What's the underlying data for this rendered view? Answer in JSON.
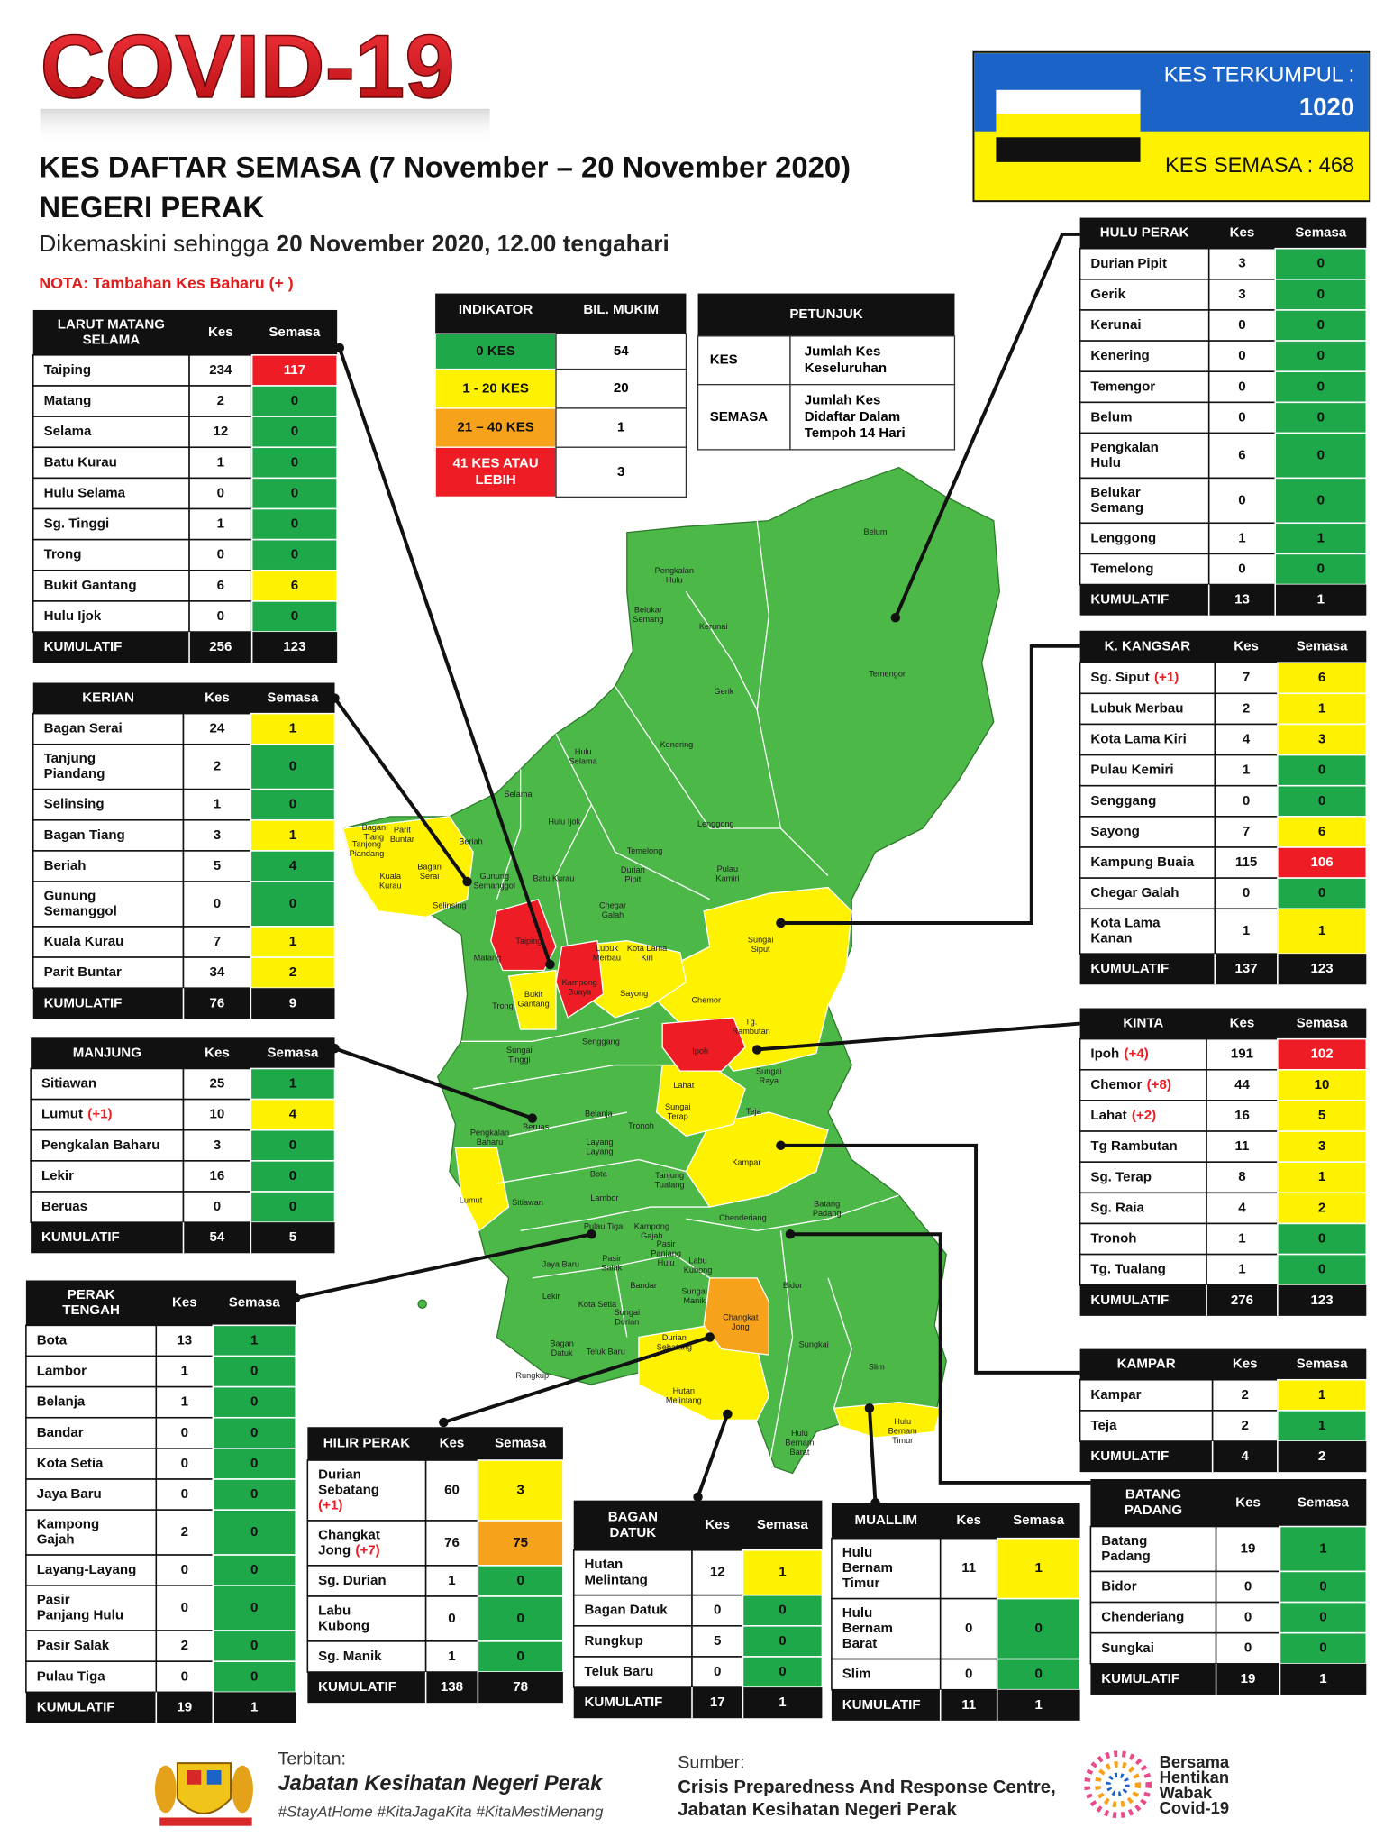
{
  "header": {
    "title": "COVID-19",
    "subtitle": "KES DAFTAR SEMASA (7 November – 20 November 2020)",
    "state": "NEGERI PERAK",
    "updated_prefix": "Dikemaskini sehingga",
    "updated_date": "20 November 2020, 12.00 tengahari",
    "note": "NOTA: Tambahan Kes Baharu (+   )"
  },
  "summary": {
    "cumulative_label": "KES TERKUMPUL :",
    "cumulative": 1020,
    "active_label": "KES SEMASA :",
    "active": 468
  },
  "indicator": {
    "headers": [
      "INDIKATOR",
      "BIL. MUKIM"
    ],
    "rows": [
      {
        "label": "0 KES",
        "count": 54,
        "color": "#1fa84a"
      },
      {
        "label": "1 - 20 KES",
        "count": 20,
        "color": "#fff200"
      },
      {
        "label": "21 – 40 KES",
        "count": 1,
        "color": "#f7a21b"
      },
      {
        "label": "41 KES ATAU LEBIH",
        "count": 3,
        "color": "#ee1c24"
      }
    ]
  },
  "legend": {
    "title": "PETUNJUK",
    "rows": [
      {
        "term": "KES",
        "desc": "Jumlah Kes Keseluruhan"
      },
      {
        "term": "SEMASA",
        "desc": "Jumlah Kes Didaftar Dalam Tempoh 14 Hari"
      }
    ]
  },
  "tables": [
    {
      "title": "LARUT MATANG SELAMA",
      "headers": [
        "Kes",
        "Semasa"
      ],
      "rows": [
        {
          "name": "Taiping",
          "kes": 234,
          "semasa": 117,
          "color": "#ee1c24"
        },
        {
          "name": "Matang",
          "kes": 2,
          "semasa": 0,
          "color": "#1fa84a"
        },
        {
          "name": "Selama",
          "kes": 12,
          "semasa": 0,
          "color": "#1fa84a"
        },
        {
          "name": "Batu Kurau",
          "kes": 1,
          "semasa": 0,
          "color": "#1fa84a"
        },
        {
          "name": "Hulu Selama",
          "kes": 0,
          "semasa": 0,
          "color": "#1fa84a"
        },
        {
          "name": "Sg. Tinggi",
          "kes": 1,
          "semasa": 0,
          "color": "#1fa84a"
        },
        {
          "name": "Trong",
          "kes": 0,
          "semasa": 0,
          "color": "#1fa84a"
        },
        {
          "name": "Bukit Gantang",
          "kes": 6,
          "semasa": 6,
          "color": "#fff200"
        },
        {
          "name": "Hulu Ijok",
          "kes": 0,
          "semasa": 0,
          "color": "#1fa84a"
        }
      ],
      "total": {
        "label": "KUMULATIF",
        "kes": 256,
        "semasa": 123
      }
    },
    {
      "title": "KERIAN",
      "headers": [
        "Kes",
        "Semasa"
      ],
      "rows": [
        {
          "name": "Bagan Serai",
          "kes": 24,
          "semasa": 1,
          "color": "#fff200"
        },
        {
          "name": "Tanjung Piandang",
          "kes": 2,
          "semasa": 0,
          "color": "#1fa84a"
        },
        {
          "name": "Selinsing",
          "kes": 1,
          "semasa": 0,
          "color": "#1fa84a"
        },
        {
          "name": "Bagan Tiang",
          "kes": 3,
          "semasa": 1,
          "color": "#fff200"
        },
        {
          "name": "Beriah",
          "kes": 5,
          "semasa": 4,
          "color": "#1fa84a"
        },
        {
          "name": "Gunung Semanggol",
          "kes": 0,
          "semasa": 0,
          "color": "#1fa84a"
        },
        {
          "name": "Kuala Kurau",
          "kes": 7,
          "semasa": 1,
          "color": "#fff200"
        },
        {
          "name": "Parit Buntar",
          "kes": 34,
          "semasa": 2,
          "color": "#fff200"
        }
      ],
      "total": {
        "label": "KUMULATIF",
        "kes": 76,
        "semasa": 9
      }
    },
    {
      "title": "MANJUNG",
      "headers": [
        "Kes",
        "Semasa"
      ],
      "rows": [
        {
          "name": "Sitiawan",
          "kes": 25,
          "semasa": 1,
          "color": "#1fa84a"
        },
        {
          "name": "Lumut",
          "new": "(+1)",
          "kes": 10,
          "semasa": 4,
          "color": "#fff200"
        },
        {
          "name": "Pengkalan Baharu",
          "kes": 3,
          "semasa": 0,
          "color": "#1fa84a"
        },
        {
          "name": "Lekir",
          "kes": 16,
          "semasa": 0,
          "color": "#1fa84a"
        },
        {
          "name": "Beruas",
          "kes": 0,
          "semasa": 0,
          "color": "#1fa84a"
        }
      ],
      "total": {
        "label": "KUMULATIF",
        "kes": 54,
        "semasa": 5
      }
    },
    {
      "title": "PERAK TENGAH",
      "headers": [
        "Kes",
        "Semasa"
      ],
      "rows": [
        {
          "name": "Bota",
          "kes": 13,
          "semasa": 1,
          "color": "#1fa84a"
        },
        {
          "name": "Lambor",
          "kes": 1,
          "semasa": 0,
          "color": "#1fa84a"
        },
        {
          "name": "Belanja",
          "kes": 1,
          "semasa": 0,
          "color": "#1fa84a"
        },
        {
          "name": "Bandar",
          "kes": 0,
          "semasa": 0,
          "color": "#1fa84a"
        },
        {
          "name": "Kota Setia",
          "kes": 0,
          "semasa": 0,
          "color": "#1fa84a"
        },
        {
          "name": "Jaya Baru",
          "kes": 0,
          "semasa": 0,
          "color": "#1fa84a"
        },
        {
          "name": "Kampong Gajah",
          "kes": 2,
          "semasa": 0,
          "color": "#1fa84a"
        },
        {
          "name": "Layang-Layang",
          "kes": 0,
          "semasa": 0,
          "color": "#1fa84a"
        },
        {
          "name": "Pasir Panjang Hulu",
          "kes": 0,
          "semasa": 0,
          "color": "#1fa84a"
        },
        {
          "name": "Pasir Salak",
          "kes": 2,
          "semasa": 0,
          "color": "#1fa84a"
        },
        {
          "name": "Pulau Tiga",
          "kes": 0,
          "semasa": 0,
          "color": "#1fa84a"
        }
      ],
      "total": {
        "label": "KUMULATIF",
        "kes": 19,
        "semasa": 1
      }
    },
    {
      "title": "HILIR PERAK",
      "headers": [
        "Kes",
        "Semasa"
      ],
      "rows": [
        {
          "name": "Durian Sebatang",
          "new": "(+1)",
          "kes": 60,
          "semasa": 3,
          "color": "#fff200"
        },
        {
          "name": "Changkat Jong",
          "new": "(+7)",
          "kes": 76,
          "semasa": 75,
          "color": "#f7a21b"
        },
        {
          "name": "Sg. Durian",
          "kes": 1,
          "semasa": 0,
          "color": "#1fa84a"
        },
        {
          "name": "Labu Kubong",
          "kes": 0,
          "semasa": 0,
          "color": "#1fa84a"
        },
        {
          "name": "Sg. Manik",
          "kes": 1,
          "semasa": 0,
          "color": "#1fa84a"
        }
      ],
      "total": {
        "label": "KUMULATIF",
        "kes": 138,
        "semasa": 78
      }
    },
    {
      "title": "BAGAN DATUK",
      "headers": [
        "Kes",
        "Semasa"
      ],
      "rows": [
        {
          "name": "Hutan Melintang",
          "kes": 12,
          "semasa": 1,
          "color": "#fff200"
        },
        {
          "name": "Bagan Datuk",
          "kes": 0,
          "semasa": 0,
          "color": "#1fa84a"
        },
        {
          "name": "Rungkup",
          "kes": 5,
          "semasa": 0,
          "color": "#1fa84a"
        },
        {
          "name": "Teluk Baru",
          "kes": 0,
          "semasa": 0,
          "color": "#1fa84a"
        }
      ],
      "total": {
        "label": "KUMULATIF",
        "kes": 17,
        "semasa": 1
      }
    },
    {
      "title": "MUALLIM",
      "headers": [
        "Kes",
        "Semasa"
      ],
      "rows": [
        {
          "name": "Hulu Bernam Timur",
          "kes": 11,
          "semasa": 1,
          "color": "#fff200"
        },
        {
          "name": "Hulu Bernam Barat",
          "kes": 0,
          "semasa": 0,
          "color": "#1fa84a"
        },
        {
          "name": "Slim",
          "kes": 0,
          "semasa": 0,
          "color": "#1fa84a"
        }
      ],
      "total": {
        "label": "KUMULATIF",
        "kes": 11,
        "semasa": 1
      }
    },
    {
      "title": "BATANG PADANG",
      "headers": [
        "Kes",
        "Semasa"
      ],
      "rows": [
        {
          "name": "Batang Padang",
          "kes": 19,
          "semasa": 1,
          "color": "#1fa84a"
        },
        {
          "name": "Bidor",
          "kes": 0,
          "semasa": 0,
          "color": "#1fa84a"
        },
        {
          "name": "Chenderiang",
          "kes": 0,
          "semasa": 0,
          "color": "#1fa84a"
        },
        {
          "name": "Sungkai",
          "kes": 0,
          "semasa": 0,
          "color": "#1fa84a"
        }
      ],
      "total": {
        "label": "KUMULATIF",
        "kes": 19,
        "semasa": 1
      }
    },
    {
      "title": "KAMPAR",
      "headers": [
        "Kes",
        "Semasa"
      ],
      "rows": [
        {
          "name": "Kampar",
          "kes": 2,
          "semasa": 1,
          "color": "#fff200"
        },
        {
          "name": "Teja",
          "kes": 2,
          "semasa": 1,
          "color": "#1fa84a"
        }
      ],
      "total": {
        "label": "KUMULATIF",
        "kes": 4,
        "semasa": 2
      }
    },
    {
      "title": "KINTA",
      "headers": [
        "Kes",
        "Semasa"
      ],
      "rows": [
        {
          "name": "Ipoh",
          "new": "(+4)",
          "kes": 191,
          "semasa": 102,
          "color": "#ee1c24"
        },
        {
          "name": "Chemor",
          "new": "(+8)",
          "kes": 44,
          "semasa": 10,
          "color": "#fff200"
        },
        {
          "name": "Lahat",
          "new": "(+2)",
          "kes": 16,
          "semasa": 5,
          "color": "#fff200"
        },
        {
          "name": "Tg Rambutan",
          "kes": 11,
          "semasa": 3,
          "color": "#fff200"
        },
        {
          "name": "Sg. Terap",
          "kes": 8,
          "semasa": 1,
          "color": "#fff200"
        },
        {
          "name": "Sg. Raia",
          "kes": 4,
          "semasa": 2,
          "color": "#fff200"
        },
        {
          "name": "Tronoh",
          "kes": 1,
          "semasa": 0,
          "color": "#1fa84a"
        },
        {
          "name": "Tg. Tualang",
          "kes": 1,
          "semasa": 0,
          "color": "#1fa84a"
        }
      ],
      "total": {
        "label": "KUMULATIF",
        "kes": 276,
        "semasa": 123
      }
    },
    {
      "title": "K. KANGSAR",
      "headers": [
        "Kes",
        "Semasa"
      ],
      "rows": [
        {
          "name": "Sg. Siput",
          "new": "(+1)",
          "kes": 7,
          "semasa": 6,
          "color": "#fff200"
        },
        {
          "name": "Lubuk Merbau",
          "kes": 2,
          "semasa": 1,
          "color": "#fff200"
        },
        {
          "name": "Kota Lama Kiri",
          "kes": 4,
          "semasa": 3,
          "color": "#fff200"
        },
        {
          "name": "Pulau Kemiri",
          "kes": 1,
          "semasa": 0,
          "color": "#1fa84a"
        },
        {
          "name": "Senggang",
          "kes": 0,
          "semasa": 0,
          "color": "#1fa84a"
        },
        {
          "name": "Sayong",
          "kes": 7,
          "semasa": 6,
          "color": "#fff200"
        },
        {
          "name": "Kampung Buaia",
          "kes": 115,
          "semasa": 106,
          "color": "#ee1c24"
        },
        {
          "name": "Chegar Galah",
          "kes": 0,
          "semasa": 0,
          "color": "#1fa84a"
        },
        {
          "name": "Kota Lama Kanan",
          "kes": 1,
          "semasa": 1,
          "color": "#fff200"
        }
      ],
      "total": {
        "label": "KUMULATIF",
        "kes": 137,
        "semasa": 123
      }
    },
    {
      "title": "HULU PERAK",
      "headers": [
        "Kes",
        "Semasa"
      ],
      "rows": [
        {
          "name": "Durian Pipit",
          "kes": 3,
          "semasa": 0,
          "color": "#1fa84a"
        },
        {
          "name": "Gerik",
          "kes": 3,
          "semasa": 0,
          "color": "#1fa84a"
        },
        {
          "name": "Kerunai",
          "kes": 0,
          "semasa": 0,
          "color": "#1fa84a"
        },
        {
          "name": "Kenering",
          "kes": 0,
          "semasa": 0,
          "color": "#1fa84a"
        },
        {
          "name": "Temengor",
          "kes": 0,
          "semasa": 0,
          "color": "#1fa84a"
        },
        {
          "name": "Belum",
          "kes": 0,
          "semasa": 0,
          "color": "#1fa84a"
        },
        {
          "name": "Pengkalan Hulu",
          "kes": 6,
          "semasa": 0,
          "color": "#1fa84a"
        },
        {
          "name": "Belukar Semang",
          "kes": 0,
          "semasa": 0,
          "color": "#1fa84a"
        },
        {
          "name": "Lenggong",
          "kes": 1,
          "semasa": 1,
          "color": "#1fa84a"
        },
        {
          "name": "Temelong",
          "kes": 0,
          "semasa": 0,
          "color": "#1fa84a"
        }
      ],
      "total": {
        "label": "KUMULATIF",
        "kes": 13,
        "semasa": 1
      }
    }
  ],
  "map": {
    "labels": [
      "Belum",
      "Temengor",
      "Pengkalan Hulu",
      "Belukar Semang",
      "Kerunai",
      "Gerik",
      "Kenering",
      "Lenggong",
      "Hulu Selama",
      "Selama",
      "Hulu Ijok",
      "Temelong",
      "Durian Pipit",
      "Pulau Kamiri",
      "Beriah",
      "Gunung Semanggol",
      "Batu Kurau",
      "Bagan Serai",
      "Kuala Kurau",
      "Selinsing",
      "Parit Buntar",
      "Tanjong Piandang",
      "Bagan Tiang",
      "Chegar Galah",
      "Sungai Siput",
      "Taiping",
      "Matang",
      "Lubuk Merbau",
      "Kota Lama Kiri",
      "Sayong",
      "Bukit Gantang",
      "Kampong Buaya",
      "Trong",
      "Chemor",
      "Tg. Rambutan",
      "Ipoh",
      "Sungai Raya",
      "Senggang",
      "Sungai Tinggi",
      "Lahat",
      "Sungai Terap",
      "Teja",
      "Belanja",
      "Tronoh",
      "Pengkalan Baharu",
      "Beruas",
      "Layang Layang",
      "Kampar",
      "Bota",
      "Tanjung Tualang",
      "Lambor",
      "Lumut",
      "Sitiawan",
      "Chenderiang",
      "Batang Padang",
      "Pulau Tiga",
      "Kampong Gajah",
      "Pasir Panjang Hulu",
      "Jaya Baru",
      "Pasir Salak",
      "Labu Kubong",
      "Bidor",
      "Bandar",
      "Sungai Manik",
      "Lekir",
      "Kota Setia",
      "Sungai Durian",
      "Changkat Jong",
      "Sungkai",
      "Durian Sebatang",
      "Bagan Datuk",
      "Teluk Baru",
      "Slim",
      "Rungkup",
      "Hutan Melintang",
      "Hulu Bernam Barat",
      "Hulu Bernam Timur"
    ]
  },
  "footer": {
    "publisher_label": "Terbitan:",
    "publisher": "Jabatan Kesihatan Negeri Perak",
    "hashtags": "#StayAtHome #KitaJagaKita #KitaMestiMenang",
    "source_label": "Sumber:",
    "source_lines": [
      "Crisis Preparedness And Response Centre,",
      "Jabatan Kesihatan Negeri Perak"
    ],
    "logo_lines": [
      "Bersama",
      "Hentikan",
      "Wabak",
      "Covid-19"
    ]
  }
}
